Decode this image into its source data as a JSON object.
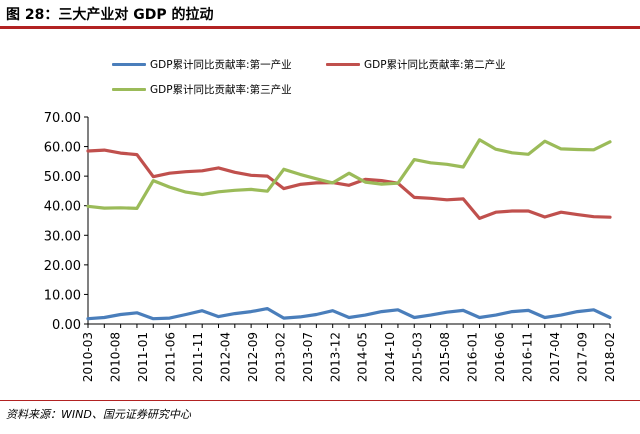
{
  "header": {
    "title": "图 28：三大产业对 GDP 的拉动"
  },
  "footer": {
    "source": "资料来源：WIND、国元证券研究中心"
  },
  "chart_data": {
    "type": "line",
    "title": "图 28：三大产业对 GDP 的拉动",
    "xlabel": "",
    "ylabel": "",
    "ylim": [
      0,
      70
    ],
    "yticks": [
      "0.00",
      "10.00",
      "20.00",
      "30.00",
      "40.00",
      "50.00",
      "60.00",
      "70.00"
    ],
    "x": [
      "2010-03",
      "2010-06",
      "2010-09",
      "2010-12",
      "2011-03",
      "2011-06",
      "2011-09",
      "2011-12",
      "2012-03",
      "2012-06",
      "2012-09",
      "2012-12",
      "2013-03",
      "2013-06",
      "2013-09",
      "2013-12",
      "2014-03",
      "2014-06",
      "2014-09",
      "2014-12",
      "2015-03",
      "2015-06",
      "2015-09",
      "2015-12",
      "2016-03",
      "2016-06",
      "2016-09",
      "2016-12",
      "2017-03",
      "2017-06",
      "2017-09",
      "2017-12",
      "2018-03"
    ],
    "xtick_labels": [
      "2010-03",
      "2010-08",
      "2011-01",
      "2011-06",
      "2011-11",
      "2012-04",
      "2012-09",
      "2013-02",
      "2013-07",
      "2013-12",
      "2014-05",
      "2014-10",
      "2015-03",
      "2015-08",
      "2016-01",
      "2016-06",
      "2016-11",
      "2017-04",
      "2017-09",
      "2018-02"
    ],
    "grid": false,
    "legend_position": "top",
    "series": [
      {
        "name": "GDP累计同比贡献率:第一产业",
        "color": "#4a7ebb",
        "values": [
          1.8,
          2.2,
          3.2,
          3.8,
          1.8,
          2.0,
          3.2,
          4.5,
          2.5,
          3.5,
          4.2,
          5.2,
          2.0,
          2.4,
          3.2,
          4.5,
          2.2,
          3.0,
          4.2,
          4.8,
          2.2,
          3.0,
          4.0,
          4.6,
          2.2,
          3.0,
          4.2,
          4.6,
          2.2,
          3.0,
          4.2,
          4.8,
          2.2
        ]
      },
      {
        "name": "GDP累计同比贡献率:第二产业",
        "color": "#c0504d",
        "values": [
          58.5,
          58.8,
          57.8,
          57.3,
          49.8,
          51.0,
          51.5,
          51.8,
          52.8,
          51.3,
          50.3,
          50.0,
          45.8,
          47.2,
          47.7,
          47.8,
          46.9,
          48.9,
          48.5,
          47.6,
          42.8,
          42.5,
          42.0,
          42.3,
          35.7,
          37.8,
          38.2,
          38.2,
          36.2,
          37.8,
          37.0,
          36.3,
          36.1
        ]
      },
      {
        "name": "GDP累计同比贡献率:第三产业",
        "color": "#9bbb59",
        "values": [
          39.8,
          39.2,
          39.3,
          39.1,
          48.5,
          46.3,
          44.6,
          43.8,
          44.7,
          45.2,
          45.5,
          44.9,
          52.3,
          50.6,
          49.1,
          47.7,
          51.0,
          48.0,
          47.3,
          47.6,
          55.6,
          54.5,
          54.0,
          53.1,
          62.3,
          59.1,
          57.9,
          57.4,
          61.8,
          59.2,
          59.0,
          58.9,
          61.6
        ]
      }
    ]
  }
}
